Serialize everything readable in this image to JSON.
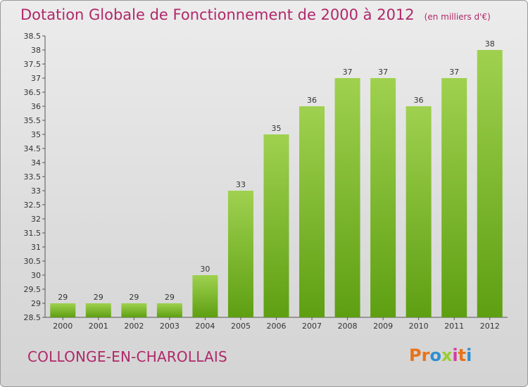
{
  "header": {
    "title": "Dotation Globale de Fonctionnement de 2000 à 2012",
    "unit": "(en milliers d'€)"
  },
  "footer": {
    "commune": "COLLONGE-EN-CHAROLLAIS",
    "logo_letters": [
      "P",
      "r",
      "o",
      "x",
      "i",
      "t",
      "i"
    ],
    "logo_colors": [
      "#e8731a",
      "#e8731a",
      "#2f8fd0",
      "#9acd32",
      "#d93aa1",
      "#e8731a",
      "#2f8fd0"
    ]
  },
  "colors": {
    "bar_top": "#9fd14f",
    "bar_bottom": "#5e9f12",
    "axis": "#555555"
  },
  "chart_data": {
    "type": "bar",
    "title": "Dotation Globale de Fonctionnement de 2000 à 2012",
    "subtitle": "(en milliers d'€)",
    "xlabel": "",
    "ylabel": "",
    "categories": [
      "2000",
      "2001",
      "2002",
      "2003",
      "2004",
      "2005",
      "2006",
      "2007",
      "2008",
      "2009",
      "2010",
      "2011",
      "2012"
    ],
    "values": [
      29,
      29,
      29,
      29,
      30,
      33,
      35,
      36,
      37,
      37,
      36,
      37,
      38
    ],
    "ylim": [
      28.5,
      38.5
    ],
    "yticks": [
      "28.5",
      "29",
      "29.5",
      "30",
      "30.5",
      "31",
      "31.5",
      "32",
      "32.5",
      "33",
      "33.5",
      "34",
      "34.5",
      "35",
      "35.5",
      "36",
      "36.5",
      "37",
      "37.5",
      "38",
      "38.5"
    ],
    "grid": false,
    "legend": "none"
  }
}
